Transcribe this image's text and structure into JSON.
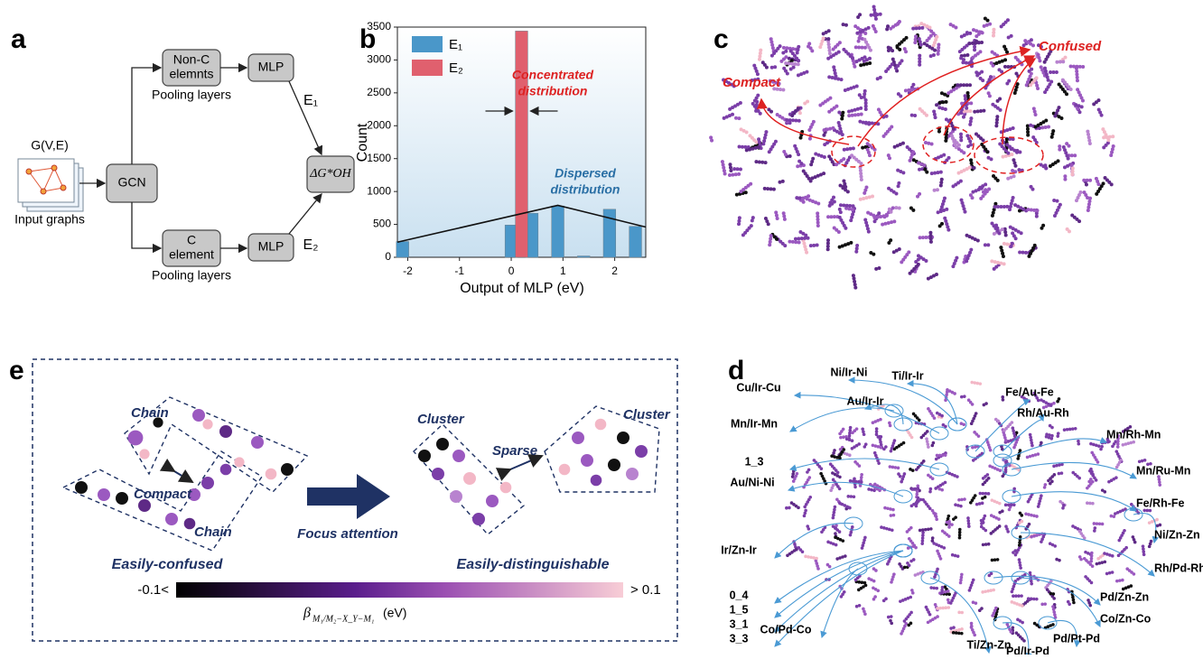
{
  "panel_labels": [
    "a",
    "b",
    "c",
    "d",
    "e"
  ],
  "panel_a": {
    "graph_label": "G(V,E)",
    "input_label": "Input graphs",
    "gcn": "GCN",
    "nonc_box": [
      "Non-C",
      "elemnts"
    ],
    "nonc_pool": "Pooling layers",
    "mlp_top": "MLP",
    "e1": "E₁",
    "target": "ΔG*OH",
    "c_box": [
      "C",
      "element"
    ],
    "c_pool": "Pooling layers",
    "mlp_bottom": "MLP",
    "e2": "E₂"
  },
  "chart_data": {
    "type": "bar",
    "x_label": "Output of MLP (eV)",
    "y_label": "Count",
    "series": [
      {
        "name": "E₁",
        "color": "#4a97c9",
        "x": [
          -2.1,
          0.0,
          0.4,
          0.9,
          1.4,
          1.9,
          2.4
        ],
        "values": [
          240,
          490,
          670,
          780,
          20,
          730,
          470
        ]
      },
      {
        "name": "E₂",
        "color": "#e0606e",
        "x": [
          0.2
        ],
        "values": [
          3440
        ]
      }
    ],
    "xlim": [
      -2.2,
      2.6
    ],
    "xticks": [
      -2,
      -1,
      0,
      1,
      2
    ],
    "ylim": [
      0,
      3500
    ],
    "yticks": [
      0,
      500,
      1000,
      1500,
      2000,
      2500,
      3000,
      3500
    ],
    "trend_line": {
      "x": [
        -2.2,
        0.9,
        2.6
      ],
      "values": [
        230,
        790,
        460
      ]
    },
    "annotations": [
      [
        "Concentrated",
        "distribution"
      ],
      [
        "Dispersed",
        "distribution"
      ]
    ]
  },
  "panel_c": {
    "compact": "Compact",
    "confused": "Confused"
  },
  "panel_d": {
    "labels": [
      "Cu/Ir-Cu",
      "Ni/Ir-Ni",
      "Ti/Ir-Ir",
      "Au/Ir-Ir",
      "Fe/Au-Fe",
      "Rh/Au-Rh",
      "Mn/Ir-Mn",
      "Mn/Rh-Mn",
      "1_3",
      "Mn/Ru-Mn",
      "Au/Ni-Ni",
      "Fe/Rh-Fe",
      "Ni/Zn-Zn",
      "Ir/Zn-Ir",
      "Rh/Pd-Rh",
      "0_4",
      "1_5",
      "3_1",
      "3_3",
      "Pd/Zn-Zn",
      "Co/Zn-Co",
      "Pd/Pt-Pd",
      "Pd/Ir-Pd",
      "Co/Pd-Co",
      "Ti/Zn-Zn"
    ]
  },
  "panel_e": {
    "chain_top": "Chain",
    "chain_bottom": "Chain",
    "compact": "Compact",
    "cluster_left": "Cluster",
    "cluster_right": "Cluster",
    "sparse": "Sparse",
    "arrow_label": "Focus attention",
    "left_caption": "Easily-confused",
    "right_caption": "Easily-distinguishable",
    "cbar_min": "-0.1<",
    "cbar_max": "> 0.1",
    "cbar_symbol": "β",
    "cbar_sub": "M₁/M₂−X_Y−M₁",
    "cbar_unit": "(eV)"
  }
}
